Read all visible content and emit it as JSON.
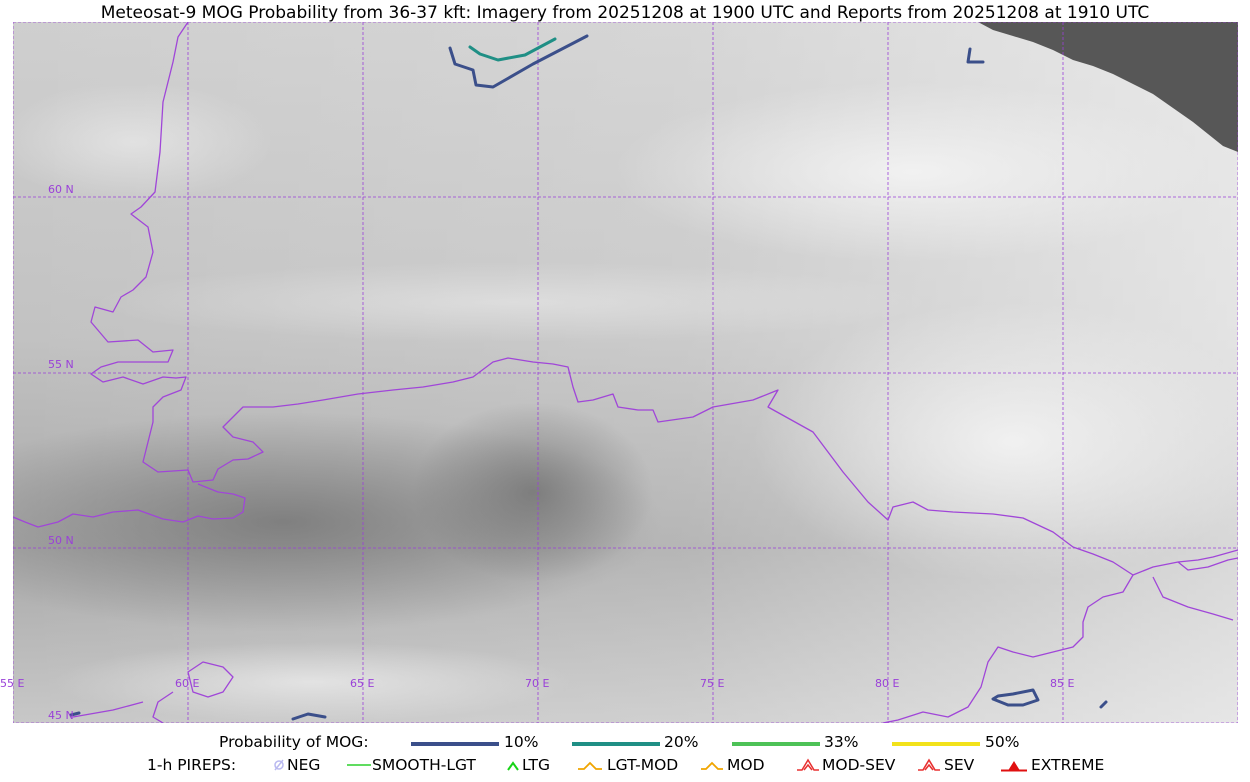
{
  "title": "Meteosat-9 MOG Probability from 36-37 kft: Imagery from 20251208 at 1900 UTC and Reports from 20251208 at 1910 UTC",
  "map": {
    "background": "#b8b8b8",
    "grid_color": "#9a40d8",
    "border_color": "#a046d8",
    "lat_labels": [
      "60 N",
      "55 N",
      "50 N",
      "45 N"
    ],
    "lon_labels": [
      "55 E",
      "60 E",
      "65 E",
      "70 E",
      "75 E",
      "80 E",
      "85 E"
    ],
    "no_data_color": "#575757"
  },
  "legend": {
    "probability": {
      "label": "Probability of MOG:",
      "items": [
        {
          "label": "10%",
          "color": "#3b4f8a"
        },
        {
          "label": "20%",
          "color": "#1f8f85"
        },
        {
          "label": "33%",
          "color": "#4dc257"
        },
        {
          "label": "50%",
          "color": "#f2e21a"
        }
      ]
    },
    "pireps": {
      "label": "1-h PIREPS:",
      "items": [
        {
          "label": "NEG",
          "icon": "neg-icon",
          "color": "#b9b9f0"
        },
        {
          "label": "SMOOTH-LGT",
          "icon": "smooth-lgt-icon",
          "color": "#2bd12b"
        },
        {
          "label": "LTG",
          "icon": "ltg-icon",
          "color": "#17d417"
        },
        {
          "label": "LGT-MOD",
          "icon": "lgt-mod-icon",
          "color": "#f0a500"
        },
        {
          "label": "MOD",
          "icon": "mod-icon",
          "color": "#f0a500"
        },
        {
          "label": "MOD-SEV",
          "icon": "mod-sev-icon",
          "color": "#e83030"
        },
        {
          "label": "SEV",
          "icon": "sev-icon",
          "color": "#e83030"
        },
        {
          "label": "EXTREME",
          "icon": "extreme-icon",
          "color": "#e01010"
        }
      ]
    }
  }
}
